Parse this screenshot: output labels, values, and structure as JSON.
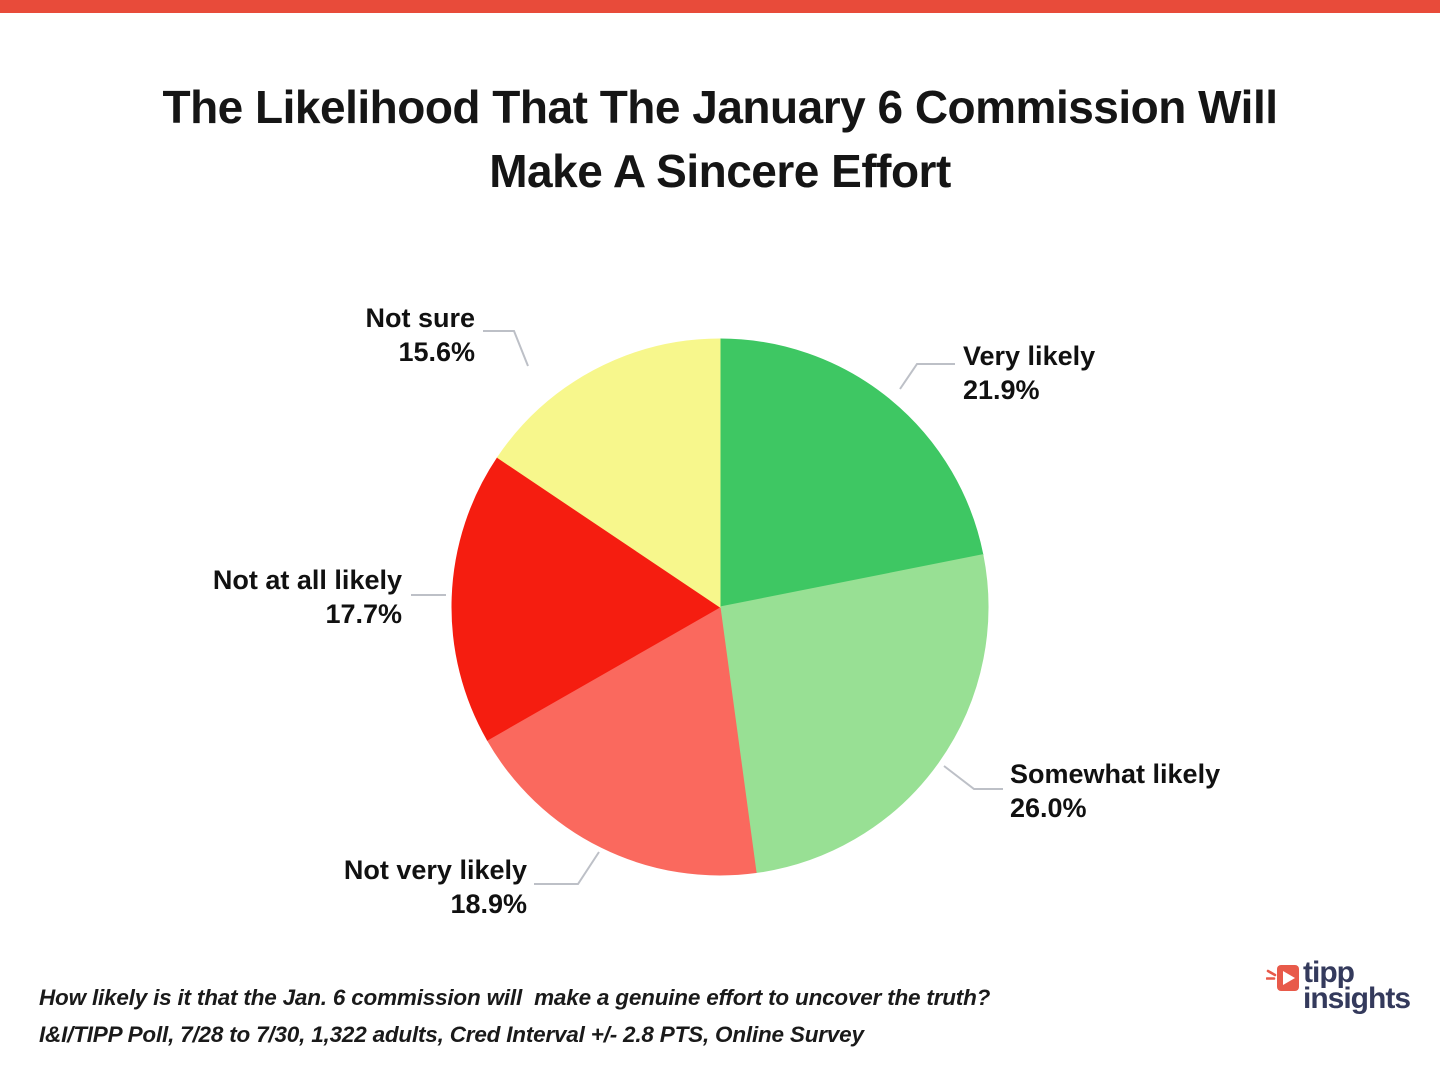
{
  "page": {
    "top_bar_color": "#e84b3a",
    "background_color": "#ffffff",
    "leader_line_color": "#bdc0c7"
  },
  "title": {
    "line1": "The Likelihood That The January 6 Commission Will",
    "line2": "Make A Sincere Effort"
  },
  "chart_data": {
    "type": "pie",
    "title": "The Likelihood That The January 6 Commission Will Make A Sincere Effort",
    "direction": "clockwise",
    "start_angle_deg": 0,
    "legend": "callout-labels",
    "slices": [
      {
        "label": "Very likely",
        "value": 21.9,
        "pct": "21.9%",
        "color": "#3ec763"
      },
      {
        "label": "Somewhat likely",
        "value": 26.0,
        "pct": "26.0%",
        "color": "#98e094"
      },
      {
        "label": "Not very likely",
        "value": 18.9,
        "pct": "18.9%",
        "color": "#fa695e"
      },
      {
        "label": "Not at all likely",
        "value": 17.7,
        "pct": "17.7%",
        "color": "#f51d10"
      },
      {
        "label": "Not sure",
        "value": 15.6,
        "pct": "15.6%",
        "color": "#f7f78c"
      }
    ]
  },
  "footer": {
    "question": "How likely is it that the Jan. 6 commission will  make a genuine effort to uncover the truth?",
    "methodology": "I&I/TIPP Poll, 7/28 to 7/30, 1,322 adults, Cred Interval +/- 2.8 PTS, Online Survey"
  },
  "logo": {
    "word1": "tipp",
    "word2": "insights",
    "text_color": "#343a5c",
    "icon_color": "#e85a4a"
  }
}
